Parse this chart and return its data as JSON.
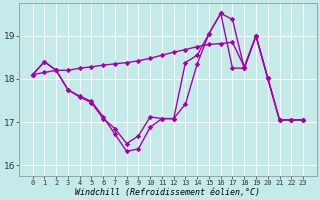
{
  "xlabel": "Windchill (Refroidissement éolien,°C)",
  "background_color": "#c5eaea",
  "line_color": "#aa00aa",
  "grid_color": "#ffffff",
  "x": [
    0,
    1,
    2,
    3,
    4,
    5,
    6,
    7,
    8,
    9,
    10,
    11,
    12,
    13,
    14,
    15,
    16,
    17,
    18,
    19,
    20,
    21,
    22,
    23
  ],
  "line1": [
    18.1,
    18.15,
    18.2,
    18.2,
    18.25,
    18.28,
    18.32,
    18.35,
    18.38,
    18.42,
    18.48,
    18.55,
    18.62,
    18.68,
    18.75,
    18.8,
    18.82,
    18.85,
    18.28,
    19.0,
    18.02,
    17.05,
    17.05,
    17.05
  ],
  "line2": [
    18.1,
    18.4,
    18.2,
    17.75,
    17.6,
    17.48,
    17.12,
    16.72,
    16.32,
    16.38,
    16.88,
    17.08,
    17.08,
    18.38,
    18.55,
    19.05,
    19.52,
    19.38,
    18.25,
    19.0,
    18.02,
    17.05,
    17.05,
    17.05
  ],
  "line3": [
    18.1,
    18.4,
    18.2,
    17.75,
    17.58,
    17.45,
    17.08,
    16.85,
    16.5,
    16.68,
    17.12,
    17.08,
    17.08,
    17.42,
    18.35,
    19.05,
    19.52,
    18.25,
    18.25,
    19.0,
    18.02,
    17.05,
    17.05,
    17.05
  ],
  "ylim": [
    15.75,
    19.75
  ],
  "yticks": [
    16,
    17,
    18,
    19
  ],
  "xticks": [
    0,
    1,
    2,
    3,
    4,
    5,
    6,
    7,
    8,
    9,
    10,
    11,
    12,
    13,
    14,
    15,
    16,
    17,
    18,
    19,
    20,
    21,
    22,
    23
  ],
  "marker_size": 2.8,
  "line_width": 1.0,
  "xlabel_fontsize": 6.0,
  "xtick_fontsize": 5.0,
  "ytick_fontsize": 6.5
}
